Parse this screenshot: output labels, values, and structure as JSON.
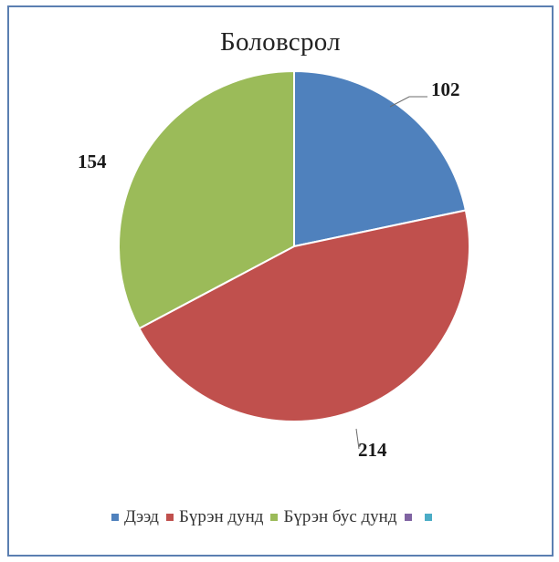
{
  "chart_data": {
    "type": "pie",
    "title": "Боловсрол",
    "slices": [
      {
        "label": "Дээд",
        "value": 102,
        "color": "#4f81bd"
      },
      {
        "label": "Бүрэн дунд",
        "value": 214,
        "color": "#c0504d"
      },
      {
        "label": "Бүрэн бус дунд",
        "value": 154,
        "color": "#9bbb59"
      }
    ],
    "legend": [
      {
        "label": "Дээд",
        "color": "#4f81bd"
      },
      {
        "label": "Бүрэн дунд",
        "color": "#c0504d"
      },
      {
        "label": "Бүрэн бус дунд",
        "color": "#9bbb59"
      },
      {
        "label": "",
        "color": "#8064a2"
      },
      {
        "label": "",
        "color": "#4bacc6"
      }
    ],
    "legend_position": "bottom",
    "start_angle": "12 o'clock, clockwise"
  },
  "colors": {
    "frame_border": "#5b7fb1",
    "slice_border": "#ffffff"
  }
}
